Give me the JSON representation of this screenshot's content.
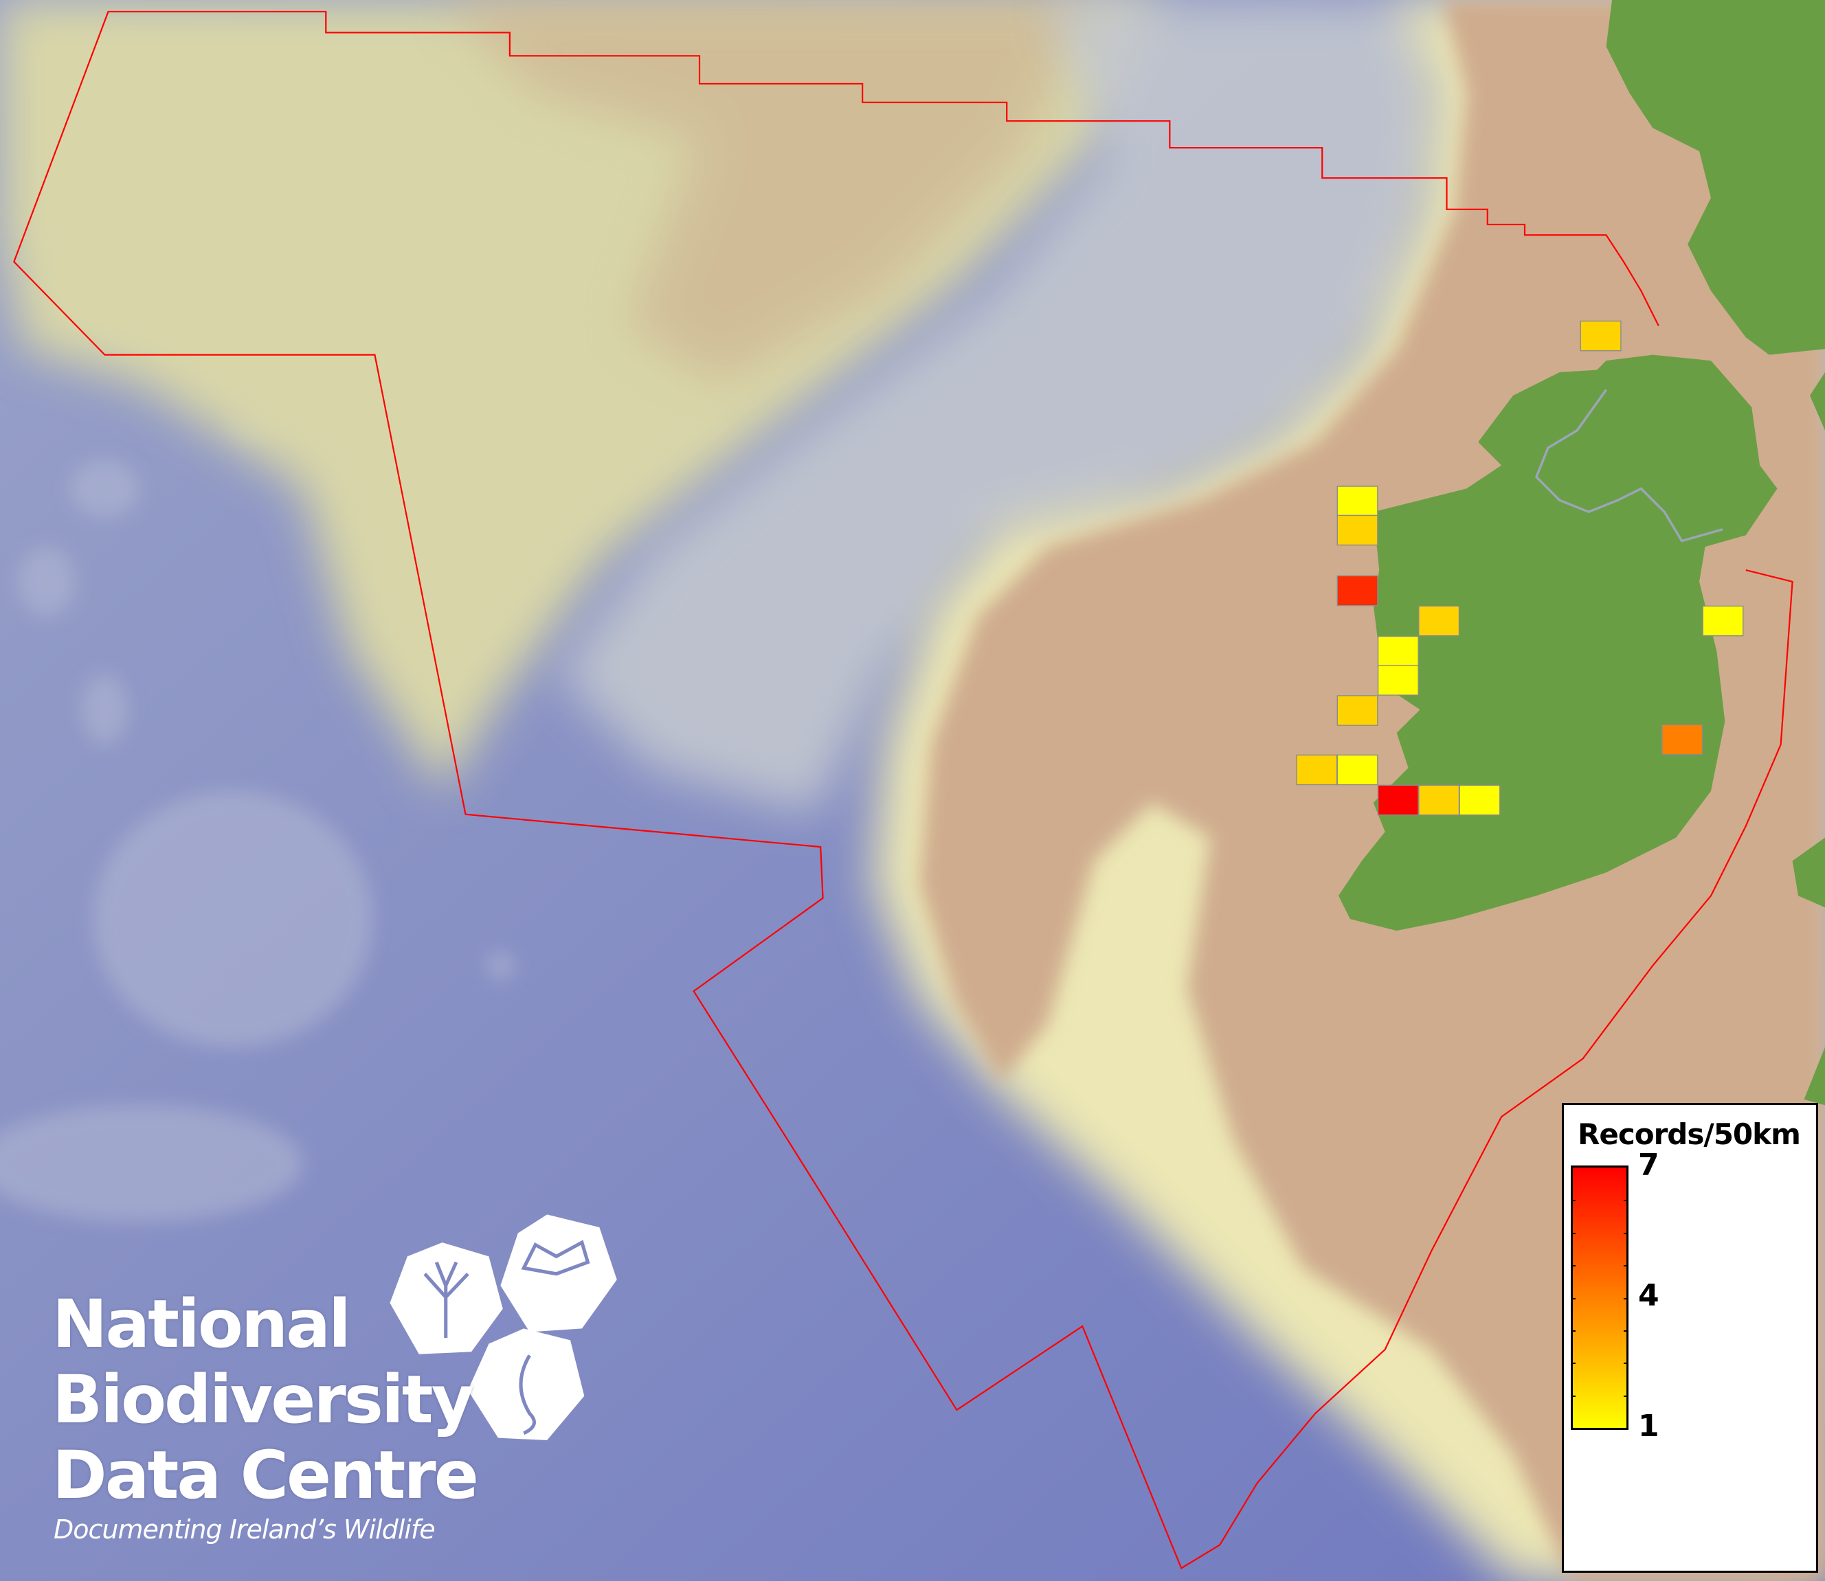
{
  "legend": {
    "title": "Records/50km",
    "scale_min_label": "1",
    "scale_mid_label": "4",
    "scale_max_label": "7",
    "scale_min": 1,
    "scale_max": 7,
    "color_low": "#ffff00",
    "color_high": "#ff0000"
  },
  "logo": {
    "line1": "National",
    "line2": "Biodiversity",
    "line3": "Data Centre",
    "tagline": "Documenting Ireland’s Wildlife"
  },
  "colors": {
    "boundary": "#ff0000",
    "land": "#6a9e45",
    "shelf": "#cfac8e",
    "ocean": "#7f87c2"
  },
  "grid_cells": [
    {
      "value": 2
    },
    {
      "value": 1
    },
    {
      "value": 2
    },
    {
      "value": 6
    },
    {
      "value": 2
    },
    {
      "value": 1
    },
    {
      "value": 1
    },
    {
      "value": 1
    },
    {
      "value": 2
    },
    {
      "value": 4
    },
    {
      "value": 2
    },
    {
      "value": 1
    },
    {
      "value": 7
    },
    {
      "value": 2
    },
    {
      "value": 1
    }
  ]
}
